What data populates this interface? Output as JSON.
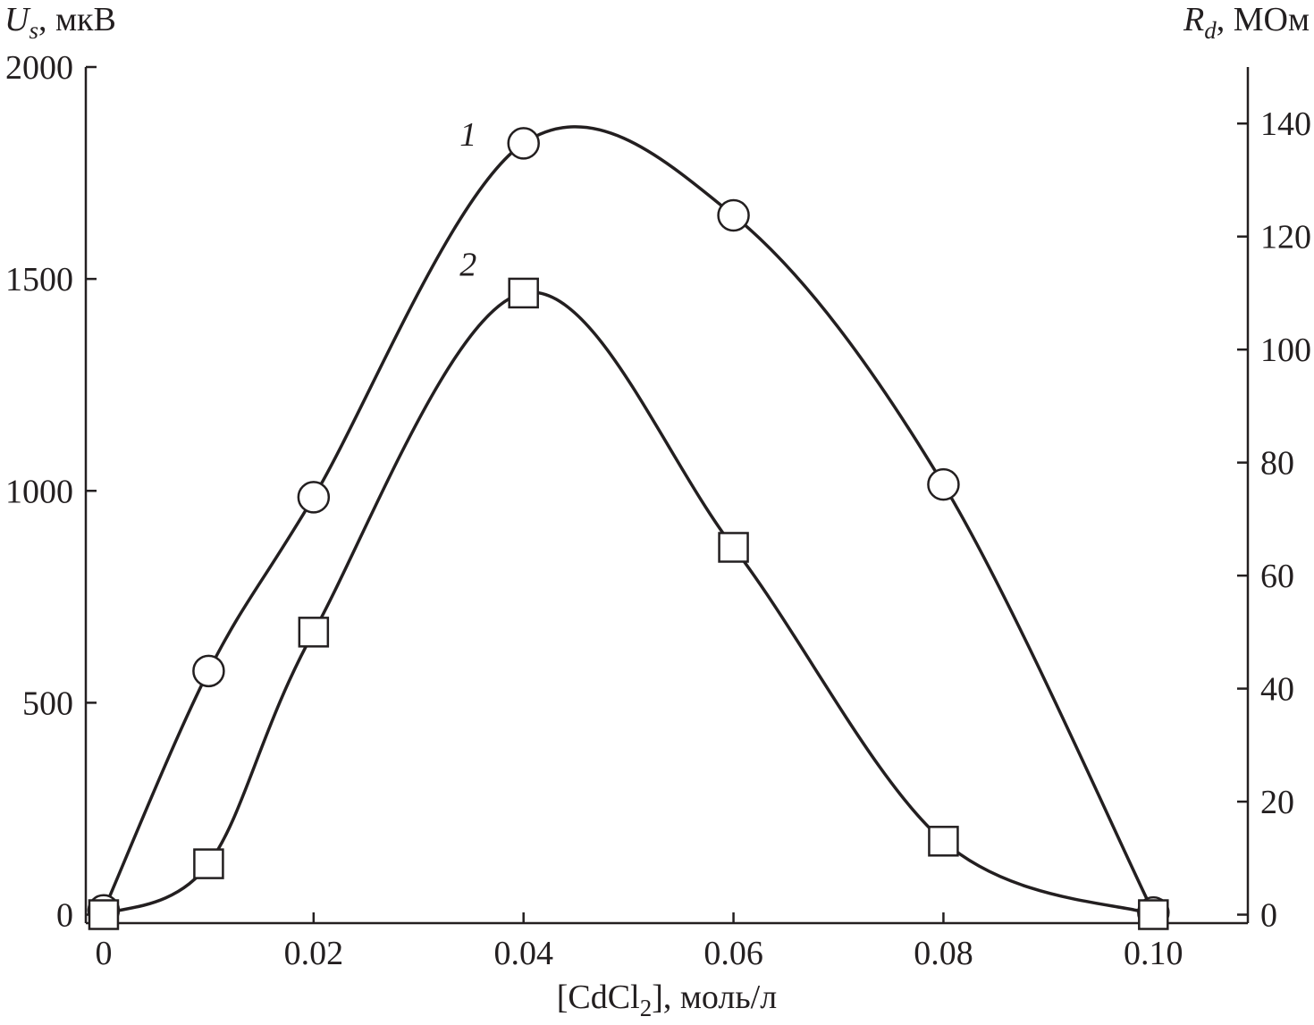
{
  "chart_data": {
    "type": "line",
    "x": [
      0,
      0.01,
      0.02,
      0.04,
      0.06,
      0.08,
      0.1
    ],
    "xlabel": {
      "pre": "[CdCl",
      "sub": "2",
      "post": "], моль/л"
    },
    "x_ticks": [
      "0",
      "0.02",
      "0.04",
      "0.06",
      "0.08",
      "0.10"
    ],
    "x_tick_values": [
      0,
      0.02,
      0.04,
      0.06,
      0.08,
      0.1
    ],
    "xlim": [
      -0.0017,
      0.109
    ],
    "ylabel_left": {
      "main": "U",
      "sub": "s",
      "unit": ", мкВ"
    },
    "y_left_ticks": [
      "0",
      "500",
      "1000",
      "1500",
      "2000"
    ],
    "y_left_tick_values": [
      0,
      500,
      1000,
      1500,
      2000
    ],
    "ylim_left": [
      -20,
      2000
    ],
    "ylabel_right": {
      "main": "R",
      "sub": "d",
      "unit": ", МОм"
    },
    "y_right_ticks": [
      "0",
      "20",
      "40",
      "60",
      "80",
      "100",
      "120",
      "140"
    ],
    "y_right_tick_values": [
      0,
      20,
      40,
      60,
      80,
      100,
      120,
      140
    ],
    "ylim_right": [
      -1.5,
      150
    ],
    "grid": false,
    "legend": "none",
    "series": [
      {
        "name": "1",
        "axis": "left",
        "marker": "circle",
        "values": [
          10,
          575,
          985,
          1820,
          1650,
          1015,
          5
        ],
        "label_at": [
          0.038,
          1840
        ]
      },
      {
        "name": "2",
        "axis": "right",
        "marker": "square",
        "values": [
          0,
          9,
          50,
          110,
          65,
          13,
          0
        ],
        "label_at": [
          0.038,
          115
        ]
      }
    ]
  }
}
